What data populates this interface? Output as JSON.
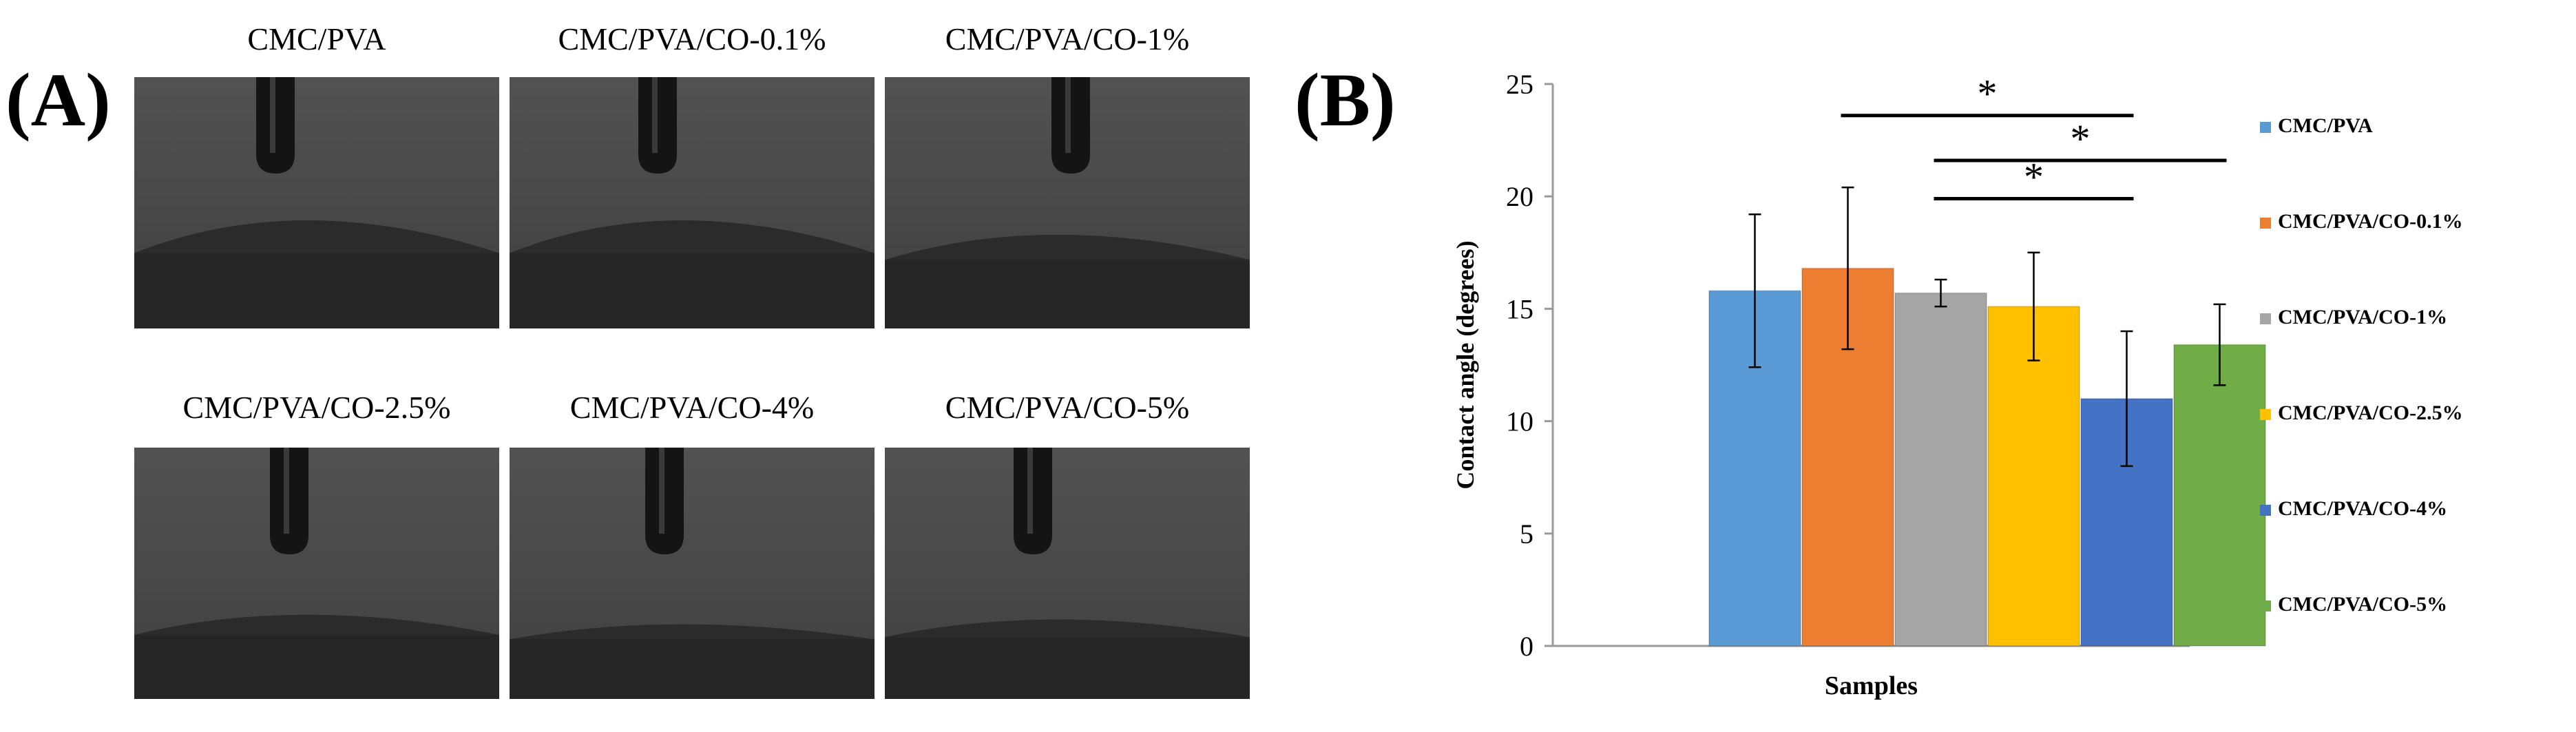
{
  "panel_a": {
    "label": "(A)",
    "photos": [
      {
        "caption": "CMC/PVA",
        "drop_height": 0.13
      },
      {
        "caption": "CMC/PVA/CO-0.1%",
        "drop_height": 0.13
      },
      {
        "caption": "CMC/PVA/CO-1%",
        "drop_height": 0.1
      },
      {
        "caption": "CMC/PVA/CO-2.5%",
        "drop_height": 0.08
      },
      {
        "caption": "CMC/PVA/CO-4%",
        "drop_height": 0.06
      },
      {
        "caption": "CMC/PVA/CO-5%",
        "drop_height": 0.07
      }
    ]
  },
  "panel_b": {
    "label": "(B)"
  },
  "chart_data": {
    "type": "bar",
    "title": "",
    "xlabel": "Samples",
    "ylabel": "Contact angle (degrees)",
    "ylim": [
      0,
      25
    ],
    "yticks": [
      0,
      5,
      10,
      15,
      20,
      25
    ],
    "grid": false,
    "legend_position": "right",
    "series": [
      {
        "name": "CMC/PVA",
        "value": 15.8,
        "error": 3.4,
        "color": "#5b9bd5"
      },
      {
        "name": "CMC/PVA/CO-0.1%",
        "value": 16.8,
        "error": 3.6,
        "color": "#ed7d31"
      },
      {
        "name": "CMC/PVA/CO-1%",
        "value": 15.7,
        "error": 0.6,
        "color": "#a5a5a5"
      },
      {
        "name": "CMC/PVA/CO-2.5%",
        "value": 15.1,
        "error": 2.4,
        "color": "#ffc000"
      },
      {
        "name": "CMC/PVA/CO-4%",
        "value": 11.0,
        "error": 3.0,
        "color": "#4472c4"
      },
      {
        "name": "CMC/PVA/CO-5%",
        "value": 13.4,
        "error": 1.8,
        "color": "#70ad47"
      }
    ],
    "significance": [
      {
        "from": 1,
        "to": 4,
        "y": 23.6,
        "label": "*"
      },
      {
        "from": 2,
        "to": 5,
        "y": 21.6,
        "label": "*"
      },
      {
        "from": 2,
        "to": 4,
        "y": 19.9,
        "label": "*"
      }
    ]
  }
}
